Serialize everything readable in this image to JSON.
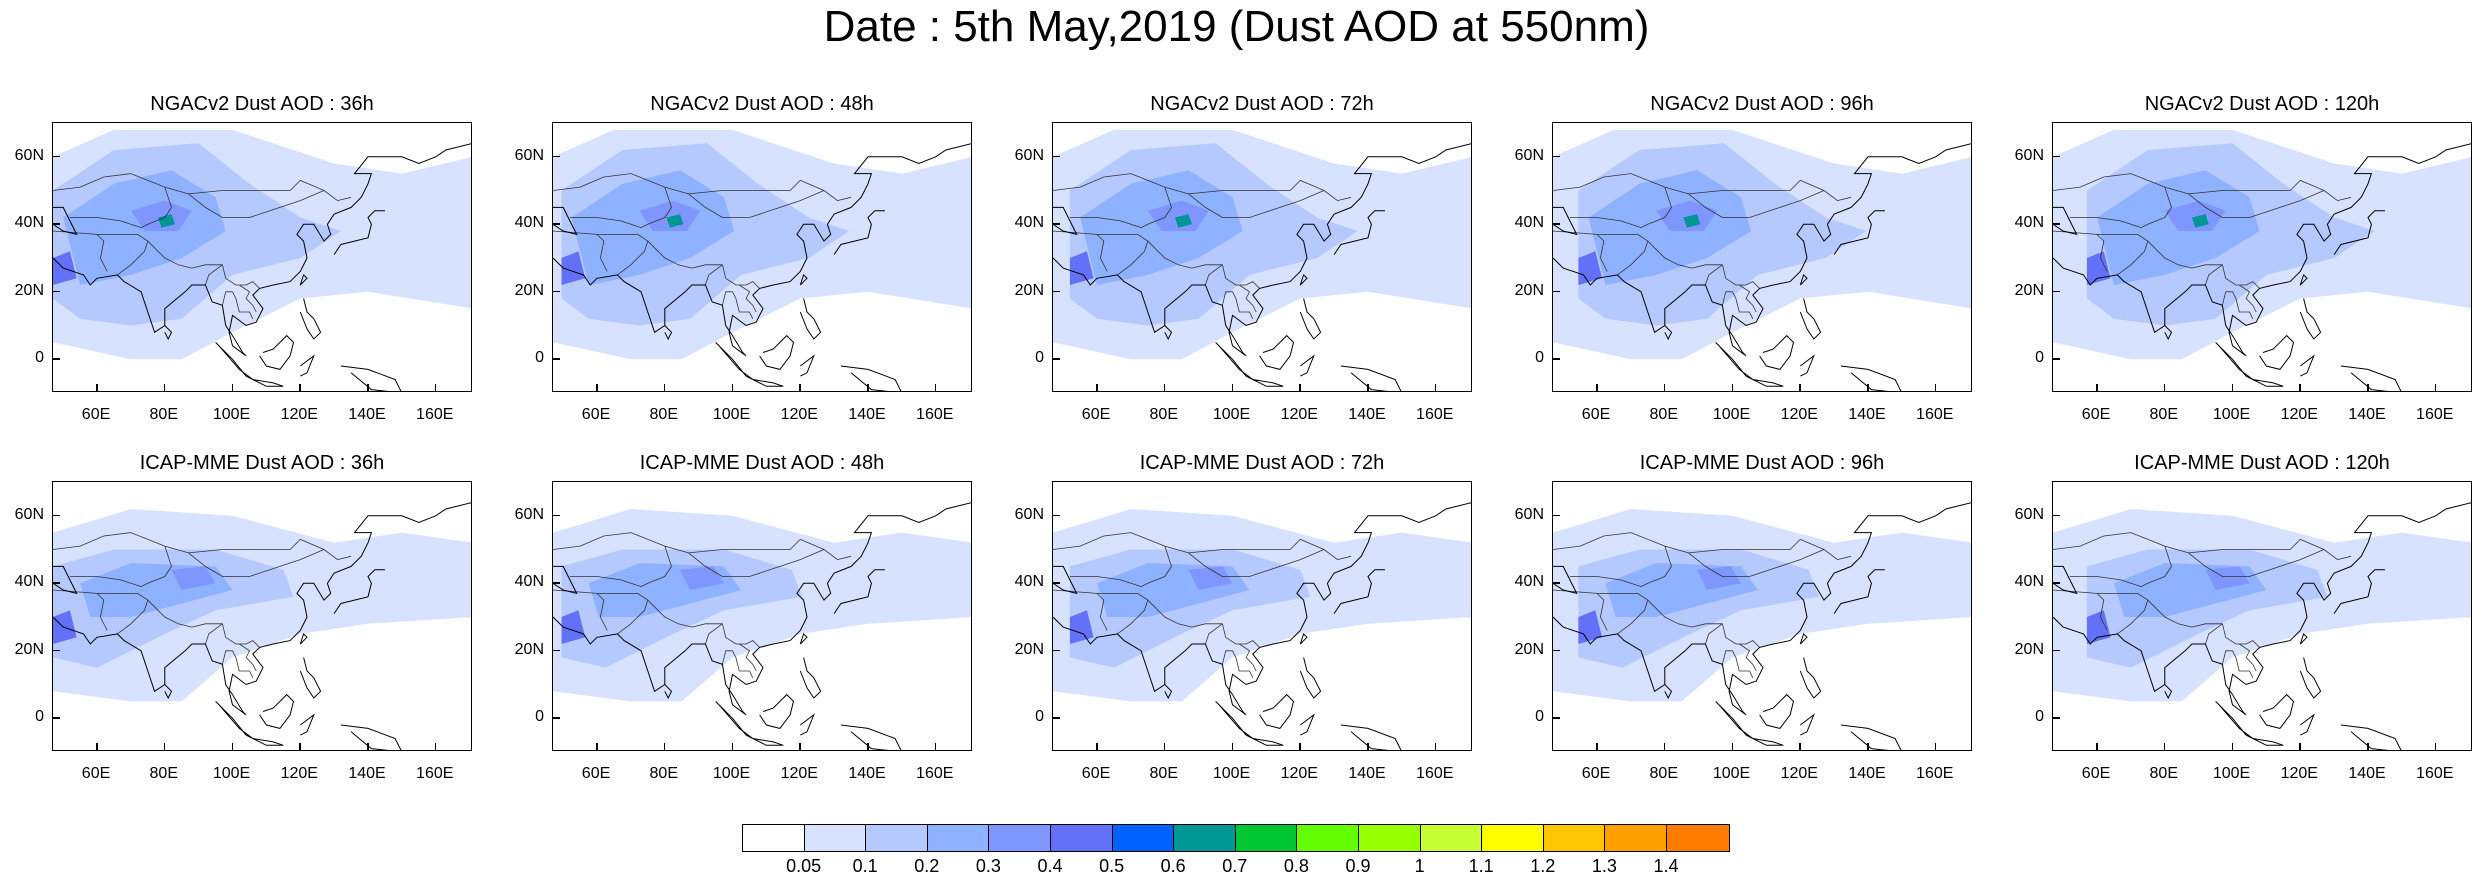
{
  "title": "Date : 5th May,2019 (Dust AOD at 550nm)",
  "lat_labels": [
    "60N",
    "40N",
    "20N",
    "0"
  ],
  "lon_labels": [
    "60E",
    "80E",
    "100E",
    "120E",
    "140E",
    "160E"
  ],
  "panels": [
    {
      "title": "NGACv2 Dust AOD : 36h"
    },
    {
      "title": "NGACv2 Dust AOD : 48h"
    },
    {
      "title": "NGACv2 Dust AOD : 72h"
    },
    {
      "title": "NGACv2 Dust AOD : 96h"
    },
    {
      "title": "NGACv2 Dust AOD : 120h"
    },
    {
      "title": "ICAP-MME Dust AOD : 36h"
    },
    {
      "title": "ICAP-MME Dust AOD : 48h"
    },
    {
      "title": "ICAP-MME Dust AOD : 72h"
    },
    {
      "title": "ICAP-MME Dust AOD : 96h"
    },
    {
      "title": "ICAP-MME Dust AOD : 120h"
    }
  ],
  "colorbar": {
    "labels": [
      "0.05",
      "0.1",
      "0.2",
      "0.3",
      "0.4",
      "0.5",
      "0.6",
      "0.7",
      "0.8",
      "0.9",
      "1",
      "1.1",
      "1.2",
      "1.3",
      "1.4"
    ],
    "colors": [
      "#ffffff",
      "#d6e2ff",
      "#b5c9ff",
      "#8eb2ff",
      "#7f96ff",
      "#6370f8",
      "#0063ff",
      "#009696",
      "#00c633",
      "#63ff00",
      "#96ff00",
      "#c6ff33",
      "#ffff00",
      "#ffc600",
      "#ffa000",
      "#ff7c00",
      "#ff1900"
    ]
  }
}
